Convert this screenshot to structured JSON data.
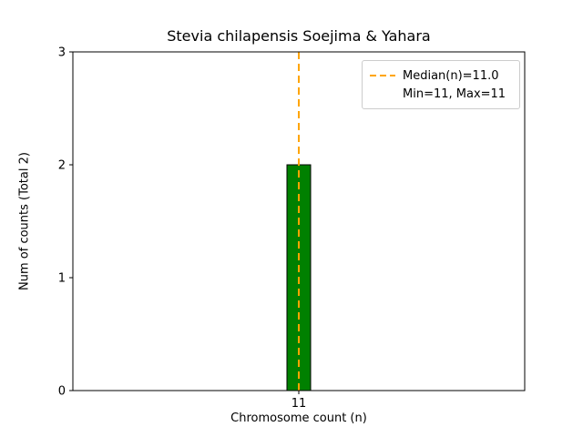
{
  "chart_data": {
    "type": "bar",
    "title": "Stevia chilapensis Soejima & Yahara",
    "xlabel": "Chromosome count (n)",
    "ylabel": "Num of counts    (Total 2)",
    "categories": [
      "11"
    ],
    "values": [
      2
    ],
    "ylim": [
      0,
      3
    ],
    "yticks": [
      0,
      1,
      2,
      3
    ],
    "total": 2,
    "median": 11.0,
    "min": 11,
    "max": 11,
    "bar_color": "#008000",
    "bar_edge_color": "#000000",
    "median_line_color": "#ffa500",
    "legend": {
      "position": "top-right",
      "entries": [
        "Median(n)=11.0",
        "Min=11, Max=11"
      ]
    },
    "grid": false
  }
}
